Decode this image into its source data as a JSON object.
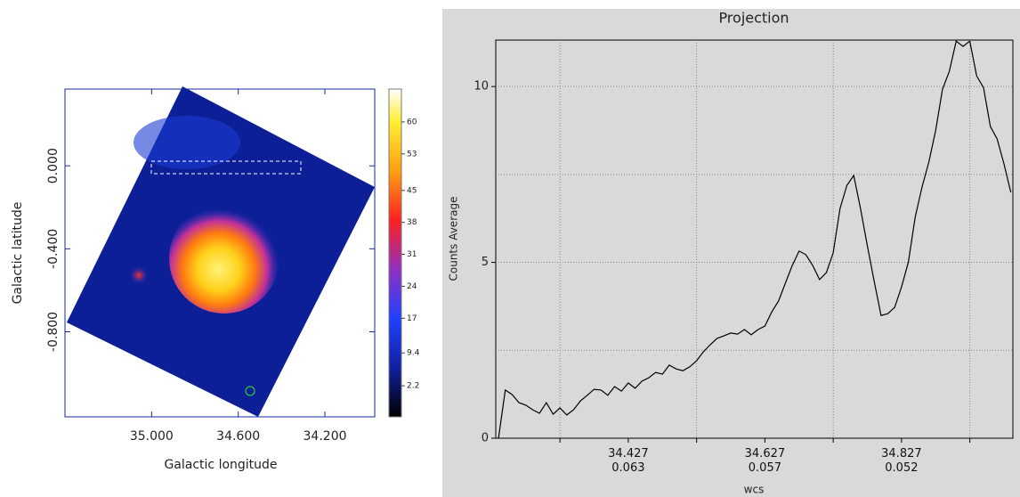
{
  "chart_data": [
    {
      "type": "image",
      "xlabel": "Galactic longitude",
      "ylabel": "Galactic latitude",
      "xlim": [
        35.4,
        33.97
      ],
      "ylim": [
        -1.21,
        0.37
      ],
      "xticks": [
        {
          "value": 35,
          "label": "35.000"
        },
        {
          "value": 34.6,
          "label": "34.600"
        },
        {
          "value": 34.2,
          "label": "34.200"
        }
      ],
      "yticks": [
        {
          "value": 0,
          "label": "0.000"
        },
        {
          "value": -0.4,
          "label": "-0.400"
        },
        {
          "value": -0.8,
          "label": "-0.800"
        }
      ],
      "colorbar": {
        "lim": [
          -4.6,
          67.2
        ],
        "ticks": [
          60,
          53,
          45,
          38,
          31,
          24,
          17,
          9.4,
          2.2
        ]
      }
    },
    {
      "type": "line",
      "title": "Projection",
      "ylabel": "Counts Average",
      "xlabel": "wcs",
      "xlim": [
        34.233,
        34.99
      ],
      "ylim": [
        0,
        11.32
      ],
      "xticks": [
        {
          "value": 34.427,
          "label": "34.427\n0.063"
        },
        {
          "value": 34.627,
          "label": "34.627\n0.057"
        },
        {
          "value": 34.827,
          "label": "34.827\n0.052"
        }
      ],
      "yticks": [
        0,
        5,
        10
      ],
      "xgrid": [
        34.327,
        34.527,
        34.727,
        34.927
      ],
      "ygrid": [
        2.5,
        5,
        7.5,
        10
      ],
      "color": "#000000",
      "x": [
        34.237,
        34.247,
        34.257,
        34.267,
        34.277,
        34.287,
        34.297,
        34.307,
        34.317,
        34.327,
        34.337,
        34.347,
        34.357,
        34.367,
        34.377,
        34.387,
        34.397,
        34.407,
        34.417,
        34.427,
        34.437,
        34.447,
        34.457,
        34.467,
        34.477,
        34.487,
        34.497,
        34.507,
        34.517,
        34.527,
        34.537,
        34.547,
        34.557,
        34.567,
        34.577,
        34.587,
        34.597,
        34.607,
        34.617,
        34.627,
        34.637,
        34.647,
        34.657,
        34.667,
        34.677,
        34.687,
        34.697,
        34.707,
        34.717,
        34.727,
        34.737,
        34.747,
        34.757,
        34.767,
        34.777,
        34.787,
        34.797,
        34.807,
        34.817,
        34.827,
        34.837,
        34.847,
        34.857,
        34.867,
        34.877,
        34.887,
        34.897,
        34.907,
        34.917,
        34.927,
        34.937,
        34.947,
        34.957,
        34.967,
        34.977,
        34.987
      ],
      "values": [
        0,
        1.37,
        1.24,
        1.01,
        0.94,
        0.81,
        0.71,
        1.01,
        0.68,
        0.86,
        0.66,
        0.81,
        1.06,
        1.22,
        1.39,
        1.37,
        1.22,
        1.47,
        1.34,
        1.57,
        1.42,
        1.62,
        1.72,
        1.87,
        1.82,
        2.08,
        1.97,
        1.92,
        2.03,
        2.2,
        2.46,
        2.66,
        2.84,
        2.91,
        2.99,
        2.96,
        3.09,
        2.94,
        3.09,
        3.19,
        3.59,
        3.9,
        4.41,
        4.91,
        5.32,
        5.22,
        4.91,
        4.51,
        4.71,
        5.27,
        6.53,
        7.19,
        7.47,
        6.53,
        5.47,
        4.46,
        3.49,
        3.54,
        3.72,
        4.3,
        5.01,
        6.28,
        7.14,
        7.85,
        8.76,
        9.92,
        10.43,
        11.29,
        11.14,
        11.29,
        10.3,
        9.97,
        8.86,
        8.51,
        7.8,
        6.99
      ]
    }
  ]
}
